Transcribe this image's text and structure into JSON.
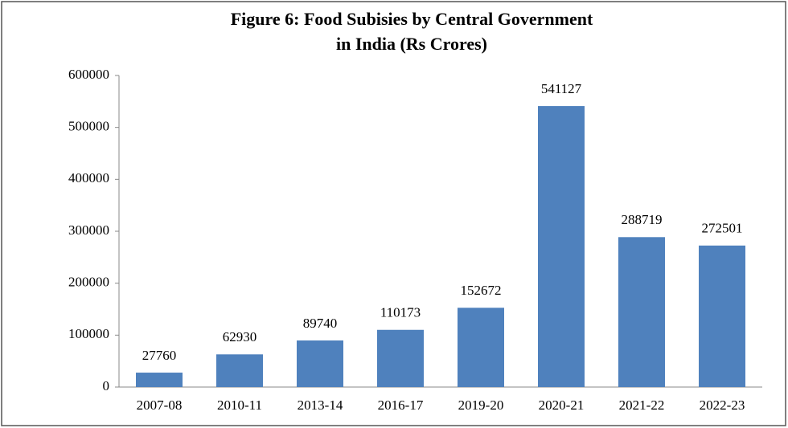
{
  "chart_data": {
    "type": "bar",
    "title": [
      "Figure 6: Food Subisies by Central Government",
      "in India (Rs Crores)"
    ],
    "categories": [
      "2007-08",
      "2010-11",
      "2013-14",
      "2016-17",
      "2019-20",
      "2020-21",
      "2021-22",
      "2022-23"
    ],
    "values": [
      27760,
      62930,
      89740,
      110173,
      152672,
      541127,
      288719,
      272501
    ],
    "color": "#4f81bd",
    "ylim": [
      0,
      600000
    ],
    "yticks": [
      0,
      100000,
      200000,
      300000,
      400000,
      500000,
      600000
    ],
    "grid": false
  }
}
